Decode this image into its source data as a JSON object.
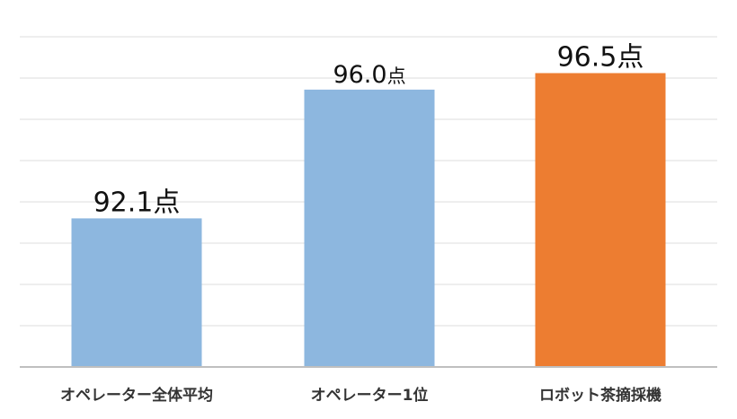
{
  "chart_data": {
    "type": "bar",
    "categories": [
      "オペレーター全体平均",
      "オペレーター1位",
      "ロボット茶摘採機"
    ],
    "values": [
      92.1,
      96.0,
      96.5
    ],
    "data_labels": [
      {
        "num": "92.1",
        "unit": "点"
      },
      {
        "num": "96.0",
        "unit": "点"
      },
      {
        "num": "96.5",
        "unit": "点"
      }
    ],
    "bar_colors": [
      "#8db7df",
      "#8db7df",
      "#ed7d31"
    ],
    "ylim": [
      87.6,
      97.6
    ],
    "grid": true,
    "gridline_color": "#dcdcdc",
    "axis_color": "#bfbfbf"
  }
}
